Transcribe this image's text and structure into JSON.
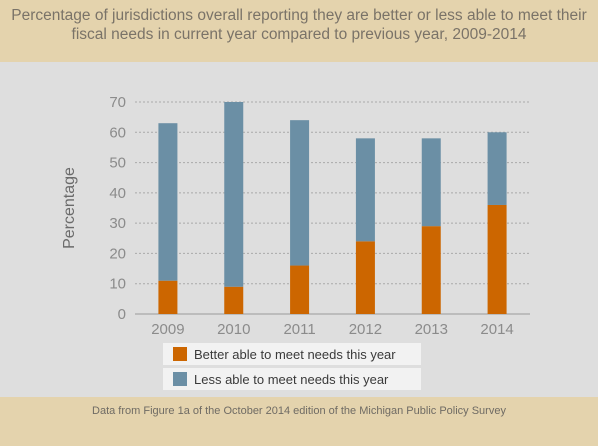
{
  "chart_data": {
    "type": "bar",
    "stacked": true,
    "title": "Percentage of jurisdictions overall reporting they are better or less able to meet their fiscal needs in current year compared to previous year, 2009-2014",
    "ylabel": "Percentage",
    "xlabel": "",
    "categories": [
      "2009",
      "2010",
      "2011",
      "2012",
      "2013",
      "2014"
    ],
    "ylim": [
      0,
      70
    ],
    "yticks": [
      0,
      10,
      20,
      30,
      40,
      50,
      60,
      70
    ],
    "grid": true,
    "legend": "bottom",
    "series": [
      {
        "name": "Better able to meet needs this year",
        "color": "#cc6600",
        "values": [
          11,
          9,
          16,
          24,
          29,
          36
        ]
      },
      {
        "name": "Less able to meet needs this year",
        "color": "#6b8fa5",
        "values": [
          52,
          61,
          48,
          34,
          29,
          24
        ]
      }
    ]
  },
  "source": "Data from Figure 1a of the October 2014 edition of the Michigan Public Policy Survey"
}
